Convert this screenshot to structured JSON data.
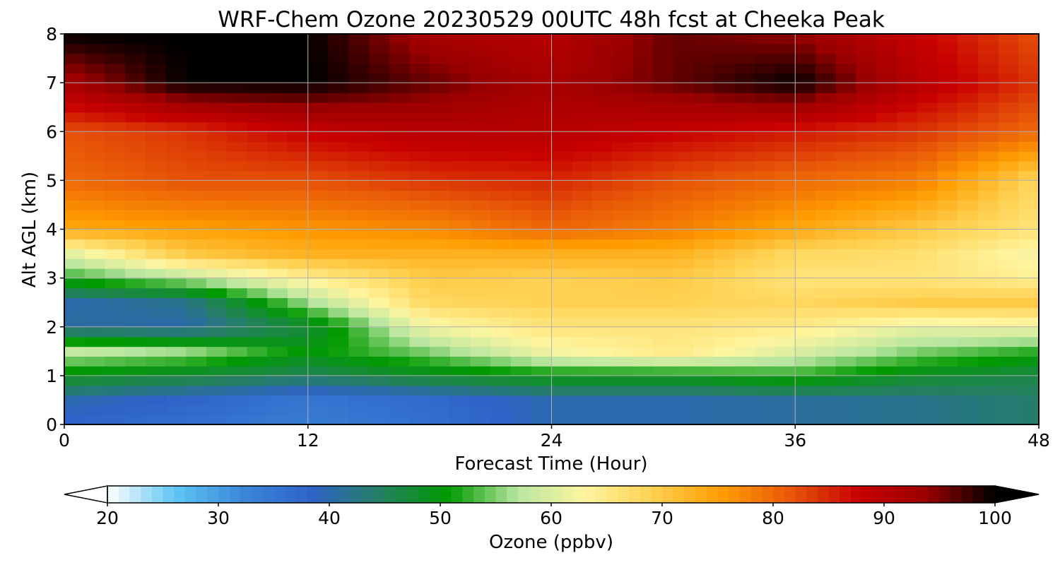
{
  "chart_data": {
    "type": "heatmap",
    "title": "WRF-Chem Ozone  20230529 00UTC 48h fcst at Cheeka Peak",
    "xlabel": "Forecast Time (Hour)",
    "ylabel": "Alt AGL (km)",
    "xlim": [
      0,
      48
    ],
    "ylim": [
      0,
      8
    ],
    "x_ticks": [
      0,
      12,
      24,
      36,
      48
    ],
    "y_ticks": [
      0,
      1,
      2,
      3,
      4,
      5,
      6,
      7,
      8
    ],
    "grid": true,
    "x": [
      0,
      6,
      12,
      18,
      24,
      30,
      36,
      42,
      48
    ],
    "y": [
      0,
      0.5,
      1,
      1.5,
      2,
      2.5,
      3,
      3.5,
      4,
      5,
      6,
      7,
      8
    ],
    "z": [
      [
        38,
        36,
        34,
        36,
        40,
        40,
        41,
        42,
        44
      ],
      [
        40,
        38,
        35,
        37,
        40,
        40,
        41,
        42,
        44
      ],
      [
        49,
        47,
        45,
        48,
        50,
        50,
        52,
        48,
        46
      ],
      [
        58,
        56,
        50,
        55,
        62,
        65,
        60,
        55,
        52
      ],
      [
        41,
        40,
        47,
        62,
        66,
        66,
        65,
        61,
        62
      ],
      [
        40,
        42,
        56,
        68,
        69,
        69,
        68,
        70,
        70
      ],
      [
        52,
        57,
        64,
        70,
        69,
        70,
        66,
        66,
        64
      ],
      [
        60,
        70,
        73,
        73,
        73,
        73,
        68,
        67,
        62
      ],
      [
        74,
        75,
        76,
        77,
        80,
        78,
        74,
        70,
        66
      ],
      [
        80,
        82,
        82,
        84,
        85,
        82,
        80,
        78,
        68
      ],
      [
        82,
        84,
        88,
        90,
        90,
        88,
        86,
        84,
        80
      ],
      [
        92,
        100,
        100,
        96,
        92,
        96,
        100,
        90,
        84
      ],
      [
        100,
        100,
        100,
        92,
        90,
        96,
        94,
        88,
        82
      ]
    ],
    "colorbar": {
      "label": "Ozone  (ppbv)",
      "min": 20,
      "max": 100,
      "ticks": [
        20,
        30,
        40,
        50,
        60,
        70,
        80,
        90,
        100
      ],
      "extend": "both",
      "colors": [
        "#ffffff",
        "#5ec5f5",
        "#3a86d8",
        "#2f62c8",
        "#248060",
        "#009a00",
        "#b8e6a0",
        "#fff5a0",
        "#ffd050",
        "#ff9c00",
        "#e85808",
        "#c80000",
        "#9a0000",
        "#000000"
      ]
    }
  }
}
